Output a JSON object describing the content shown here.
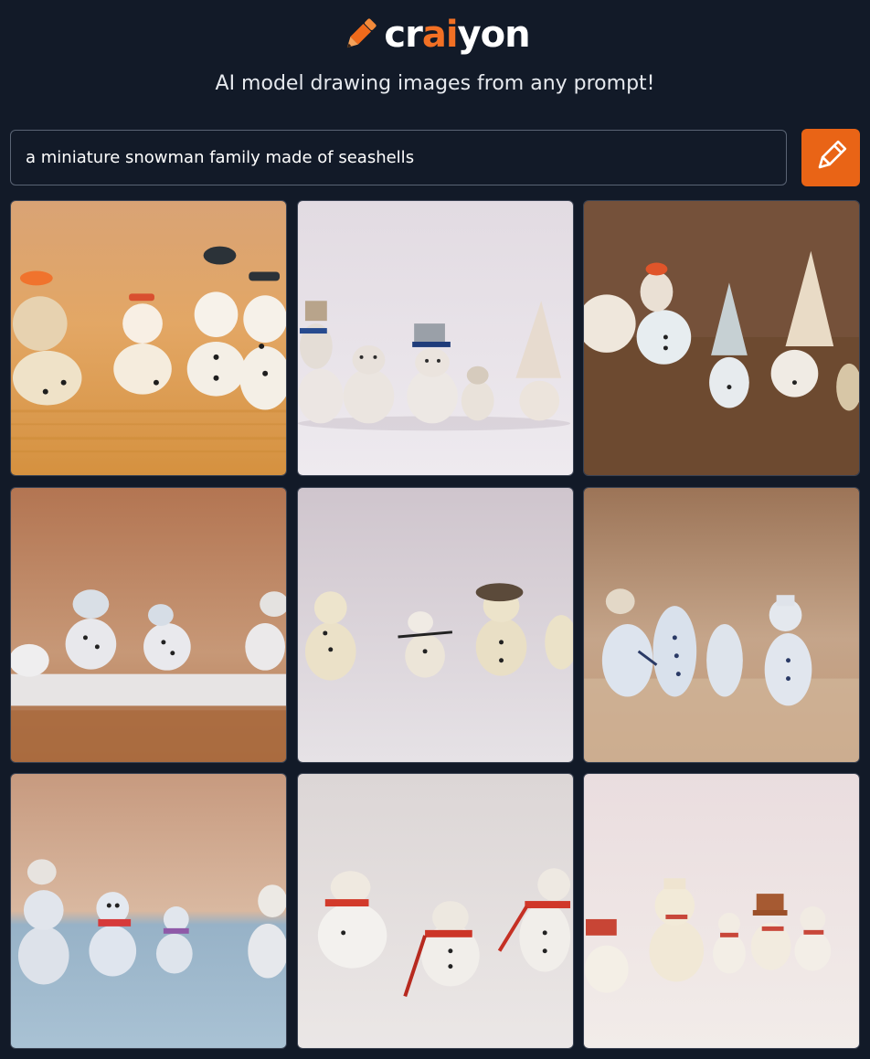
{
  "brand": {
    "name_prefix": "cr",
    "name_accent": "ai",
    "name_suffix": "yon",
    "accent_color": "#f27024",
    "logo_icon": "pencil-icon"
  },
  "tagline": "AI model drawing images from any prompt!",
  "search": {
    "value": "a miniature snowman family made of seashells",
    "button_icon": "pencil-icon",
    "button_color": "#e96416"
  },
  "results": {
    "count": 9,
    "prompt": "a miniature snowman family made of seashells"
  }
}
